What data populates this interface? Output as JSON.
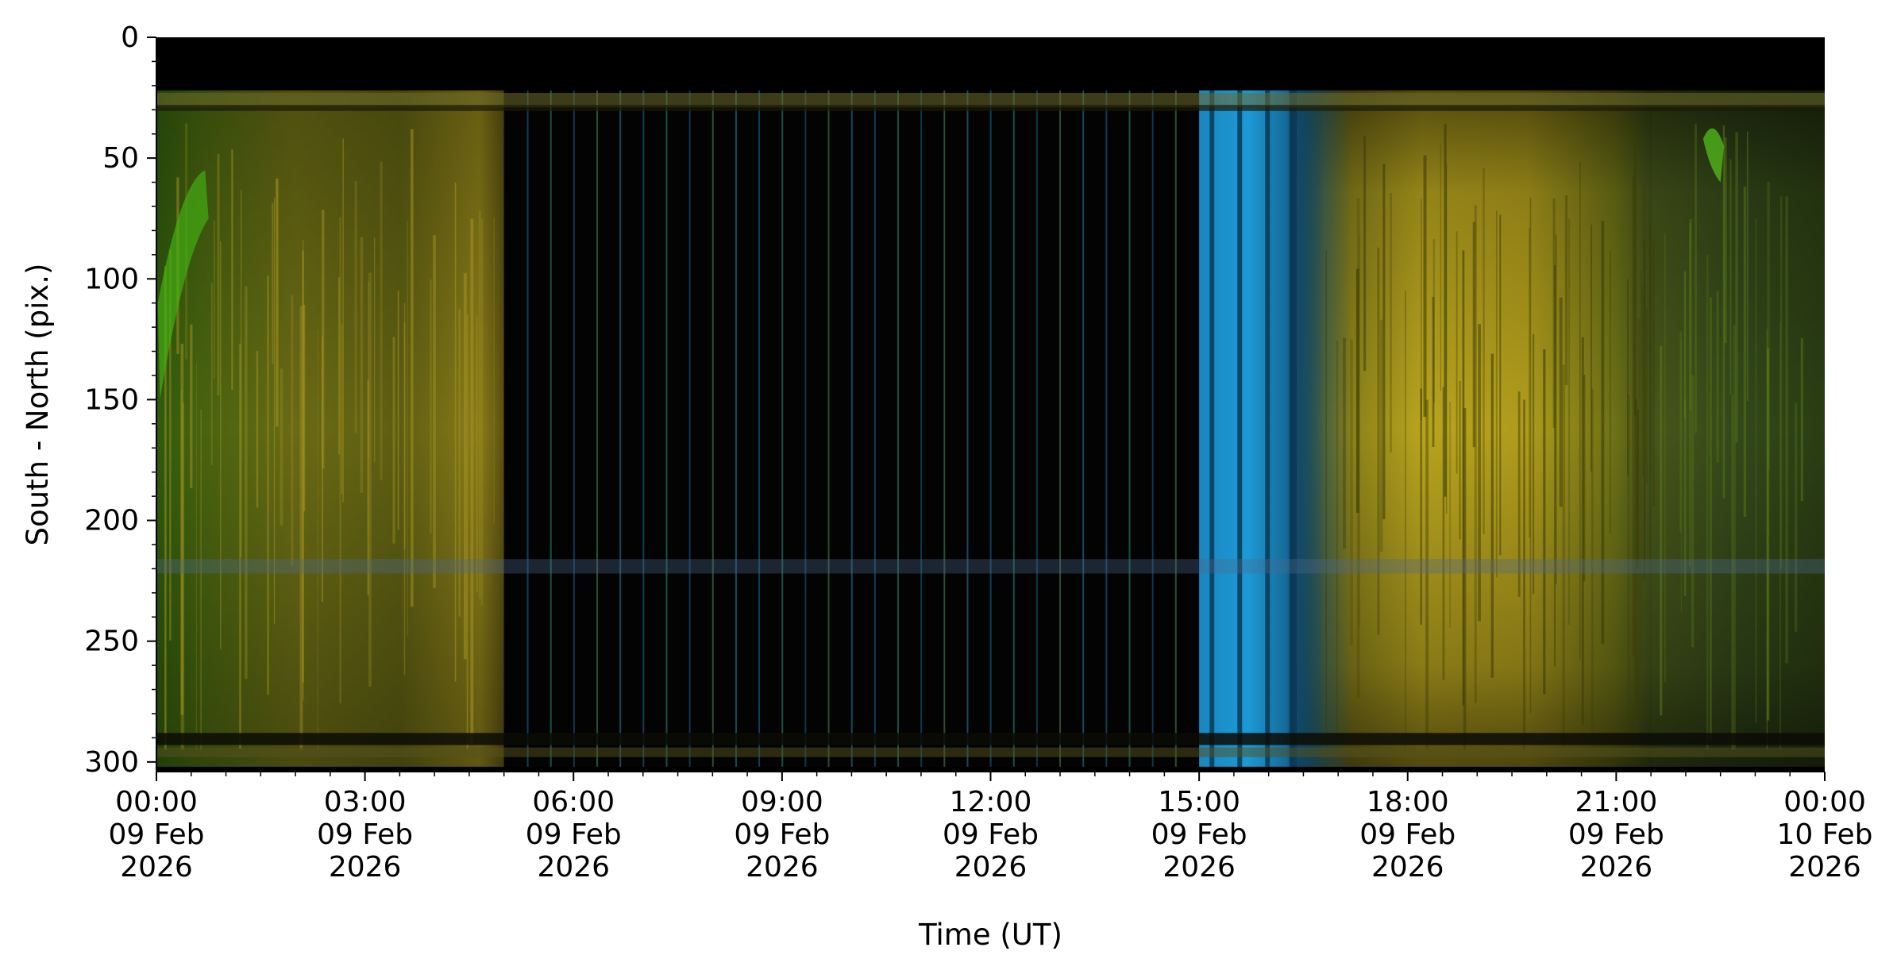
{
  "chart_data": {
    "type": "heatmap",
    "title": "",
    "xlabel": "Time (UT)",
    "ylabel": "South - North (pix.)",
    "x_ticks": [
      {
        "value": 0,
        "lines": [
          "00:00",
          "09 Feb",
          "2026"
        ]
      },
      {
        "value": 3,
        "lines": [
          "03:00",
          "09 Feb",
          "2026"
        ]
      },
      {
        "value": 6,
        "lines": [
          "06:00",
          "09 Feb",
          "2026"
        ]
      },
      {
        "value": 9,
        "lines": [
          "09:00",
          "09 Feb",
          "2026"
        ]
      },
      {
        "value": 12,
        "lines": [
          "12:00",
          "09 Feb",
          "2026"
        ]
      },
      {
        "value": 15,
        "lines": [
          "15:00",
          "09 Feb",
          "2026"
        ]
      },
      {
        "value": 18,
        "lines": [
          "18:00",
          "09 Feb",
          "2026"
        ]
      },
      {
        "value": 21,
        "lines": [
          "21:00",
          "09 Feb",
          "2026"
        ]
      },
      {
        "value": 24,
        "lines": [
          "00:00",
          "10 Feb",
          "2026"
        ]
      }
    ],
    "x_minor_step": 0.5,
    "y_ticks": [
      {
        "value": 0,
        "label": "0"
      },
      {
        "value": 50,
        "label": "50"
      },
      {
        "value": 100,
        "label": "100"
      },
      {
        "value": 150,
        "label": "150"
      },
      {
        "value": 200,
        "label": "200"
      },
      {
        "value": 250,
        "label": "250"
      },
      {
        "value": 300,
        "label": "300"
      }
    ],
    "y_minor_step": 10,
    "xlim_hours": [
      0,
      24
    ],
    "ylim": [
      304,
      0
    ],
    "y_inverted": true,
    "grid": false,
    "legend": "none",
    "regions": [
      {
        "name": "green-yellow-morning",
        "start": 0.0,
        "end": 5.0,
        "color": "#3f5a12"
      },
      {
        "name": "dark-striped",
        "start": 5.0,
        "end": 15.0,
        "color": "#020202"
      },
      {
        "name": "blue-bands",
        "start": 15.0,
        "end": 16.4,
        "color": "#1a8fc8"
      },
      {
        "name": "yellow-afternoon",
        "start": 16.4,
        "end": 21.5,
        "color": "#8f8a18"
      },
      {
        "name": "green-evening",
        "start": 21.5,
        "end": 24.0,
        "color": "#3a4d12"
      }
    ]
  }
}
